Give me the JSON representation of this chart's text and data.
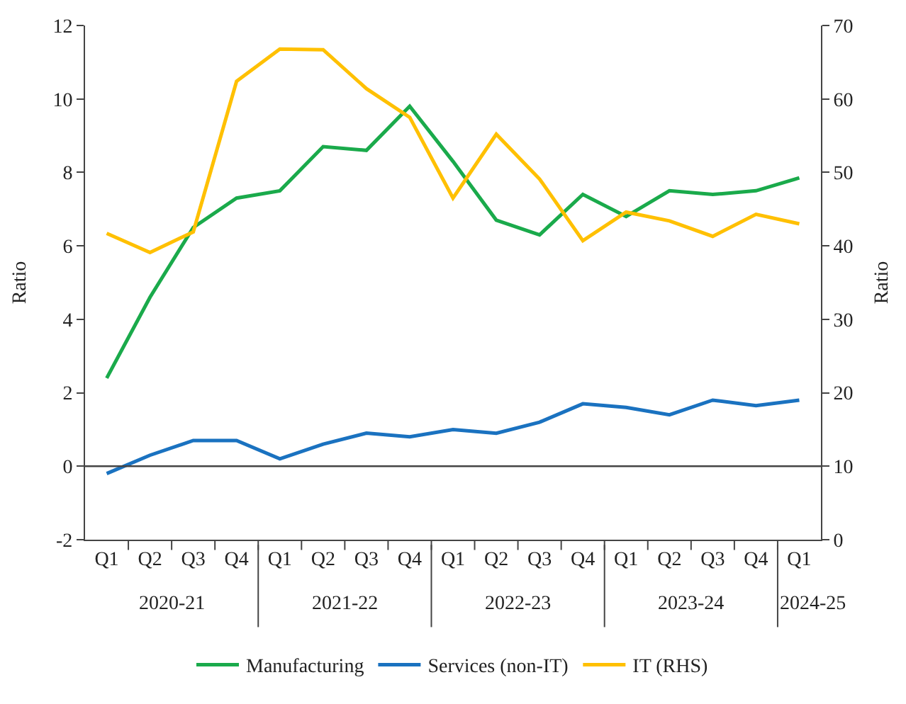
{
  "chart_data": {
    "type": "line",
    "ylabel": "Ratio",
    "y2label": "Ratio",
    "categories": [
      "Q1",
      "Q2",
      "Q3",
      "Q4",
      "Q1",
      "Q2",
      "Q3",
      "Q4",
      "Q1",
      "Q2",
      "Q3",
      "Q4",
      "Q1",
      "Q2",
      "Q3",
      "Q4",
      "Q1"
    ],
    "annotations": [
      "2020-21",
      "2021-22",
      "2022-23",
      "2023-24",
      "2024-25"
    ],
    "series": [
      {
        "name": "Manufacturing",
        "color": "#1aaa4b",
        "values": [
          2.4,
          4.6,
          6.5,
          7.3,
          7.5,
          8.7,
          8.6,
          9.8,
          8.3,
          6.7,
          6.3,
          7.4,
          6.8,
          7.5,
          7.4,
          7.5,
          7.85
        ]
      },
      {
        "name": "Services (non-IT)",
        "color": "#1a72c0",
        "values": [
          -0.2,
          0.3,
          0.7,
          0.7,
          0.2,
          0.6,
          0.9,
          0.8,
          1.0,
          0.9,
          1.2,
          1.7,
          1.6,
          1.4,
          1.8,
          1.65,
          1.8
        ]
      },
      {
        "name": "IT (RHS)",
        "color": "#ffc000",
        "axis": "y2",
        "values": [
          41.7,
          39.1,
          41.9,
          62.4,
          66.8,
          66.7,
          61.4,
          57.5,
          46.5,
          55.2,
          49.1,
          40.7,
          44.6,
          43.4,
          41.3,
          44.3,
          43.0
        ]
      }
    ],
    "ylim": [
      -2,
      12
    ],
    "yticks": [
      -2,
      0,
      2,
      4,
      6,
      8,
      10,
      12
    ],
    "y2lim": [
      0,
      70
    ],
    "y2ticks": [
      0,
      10,
      20,
      30,
      40,
      50,
      60,
      70
    ],
    "ref_lines": [
      {
        "axis": "y",
        "value": 0,
        "color": "#444444"
      }
    ],
    "grid": false,
    "legend": "bottom",
    "marker": "none",
    "line_style": "solid"
  }
}
